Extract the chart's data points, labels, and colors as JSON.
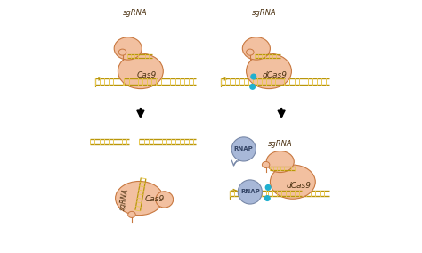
{
  "bg_color": "#ffffff",
  "dna_color": "#b8960c",
  "dna_light": "#e8c850",
  "protein_color": "#f2c0a0",
  "protein_edge": "#c87840",
  "rnap_color": "#a8b8d8",
  "rnap_edge": "#7888a8",
  "cyan_dot": "#20b0d0",
  "text_color": "#4a3010",
  "label_cas9_tl": "Cas9",
  "label_dcas9_tr": "dCas9",
  "label_cas9_bl": "Cas9",
  "label_dcas9_br": "dCas9",
  "label_sgrna_tl": "sgRNA",
  "label_sgrna_tr": "sgRNA",
  "label_sgrna_bl": "sgRNA",
  "label_sgrna_br": "sgRNA",
  "label_rnap_top": "RNAP",
  "label_rnap_bot": "RNAP",
  "figsize": [
    4.74,
    2.84
  ],
  "dpi": 100
}
